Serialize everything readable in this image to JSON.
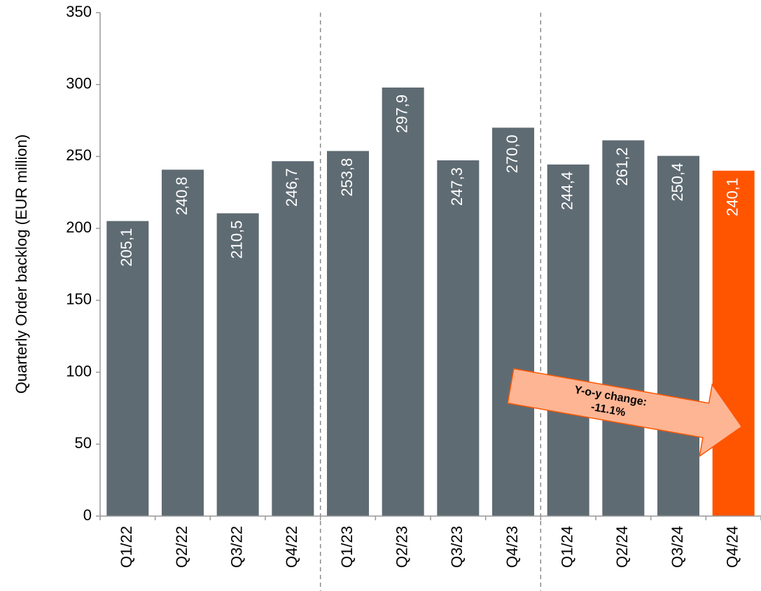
{
  "chart_data": {
    "type": "bar",
    "y_label": "Quarterly Order backlog (EUR million)",
    "categories": [
      "Q1/22",
      "Q2/22",
      "Q3/22",
      "Q4/22",
      "Q1/23",
      "Q2/23",
      "Q3/23",
      "Q4/23",
      "Q1/24",
      "Q2/24",
      "Q3/24",
      "Q4/24"
    ],
    "values": [
      205.1,
      240.8,
      210.5,
      246.7,
      253.8,
      297.9,
      247.3,
      270.0,
      244.4,
      261.2,
      250.4,
      240.1
    ],
    "value_labels": [
      "205,1",
      "240,8",
      "210,5",
      "246,7",
      "253,8",
      "297,9",
      "247,3",
      "270,0",
      "244,4",
      "261,2",
      "250,4",
      "240,1"
    ],
    "colors": [
      "#5f6b73",
      "#5f6b73",
      "#5f6b73",
      "#5f6b73",
      "#5f6b73",
      "#5f6b73",
      "#5f6b73",
      "#5f6b73",
      "#5f6b73",
      "#5f6b73",
      "#5f6b73",
      "#ff5500"
    ],
    "ylim": [
      0,
      350
    ],
    "yticks": [
      0,
      50,
      100,
      150,
      200,
      250,
      300,
      350
    ],
    "annotation": [
      "Y-o-y change:",
      "-11.1%"
    ]
  }
}
